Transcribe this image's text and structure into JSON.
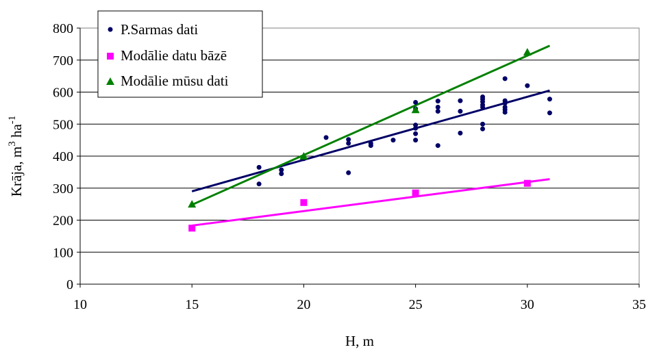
{
  "chart_data": {
    "type": "scatter",
    "title": "",
    "xlabel": "H, m",
    "ylabel": {
      "base": "Krāja, m",
      "sup1": "3",
      "mid": " ha",
      "sup2": "-1"
    },
    "xlim": [
      10,
      35
    ],
    "ylim": [
      0,
      800
    ],
    "xticks": [
      10,
      15,
      20,
      25,
      30,
      35
    ],
    "yticks": [
      0,
      100,
      200,
      300,
      400,
      500,
      600,
      700,
      800
    ],
    "grid": "horizontal",
    "legend": "top-left",
    "series": [
      {
        "name": "P.Sarmas dati",
        "marker": "circle",
        "color": "#000066",
        "points": [
          [
            18,
            365
          ],
          [
            18,
            313
          ],
          [
            19,
            357
          ],
          [
            19,
            345
          ],
          [
            20,
            392
          ],
          [
            21,
            458
          ],
          [
            22,
            452
          ],
          [
            22,
            440
          ],
          [
            22,
            348
          ],
          [
            23,
            440
          ],
          [
            23,
            433
          ],
          [
            24,
            450
          ],
          [
            25,
            568
          ],
          [
            25,
            548
          ],
          [
            25,
            497
          ],
          [
            25,
            487
          ],
          [
            25,
            470
          ],
          [
            25,
            450
          ],
          [
            26,
            572
          ],
          [
            26,
            553
          ],
          [
            26,
            540
          ],
          [
            26,
            433
          ],
          [
            27,
            573
          ],
          [
            27,
            540
          ],
          [
            27,
            472
          ],
          [
            28,
            585
          ],
          [
            28,
            578
          ],
          [
            28,
            570
          ],
          [
            28,
            560
          ],
          [
            28,
            553
          ],
          [
            28,
            500
          ],
          [
            28,
            485
          ],
          [
            29,
            642
          ],
          [
            29,
            573
          ],
          [
            29,
            565
          ],
          [
            29,
            553
          ],
          [
            29,
            545
          ],
          [
            29,
            537
          ],
          [
            30,
            620
          ],
          [
            31,
            578
          ],
          [
            31,
            535
          ]
        ],
        "trend": [
          [
            15,
            290
          ],
          [
            31,
            605
          ]
        ]
      },
      {
        "name": "Modālie datu bāzē",
        "marker": "square",
        "color": "#ff00ff",
        "points": [
          [
            15,
            175
          ],
          [
            20,
            255
          ],
          [
            25,
            285
          ],
          [
            30,
            315
          ]
        ],
        "trend": [
          [
            15,
            183
          ],
          [
            31,
            328
          ]
        ]
      },
      {
        "name": "Modālie mūsu dati",
        "marker": "triangle",
        "color": "#008000",
        "points": [
          [
            15,
            250
          ],
          [
            20,
            400
          ],
          [
            25,
            545
          ],
          [
            30,
            725
          ]
        ],
        "trend": [
          [
            15,
            248
          ],
          [
            31,
            745
          ]
        ]
      }
    ]
  }
}
